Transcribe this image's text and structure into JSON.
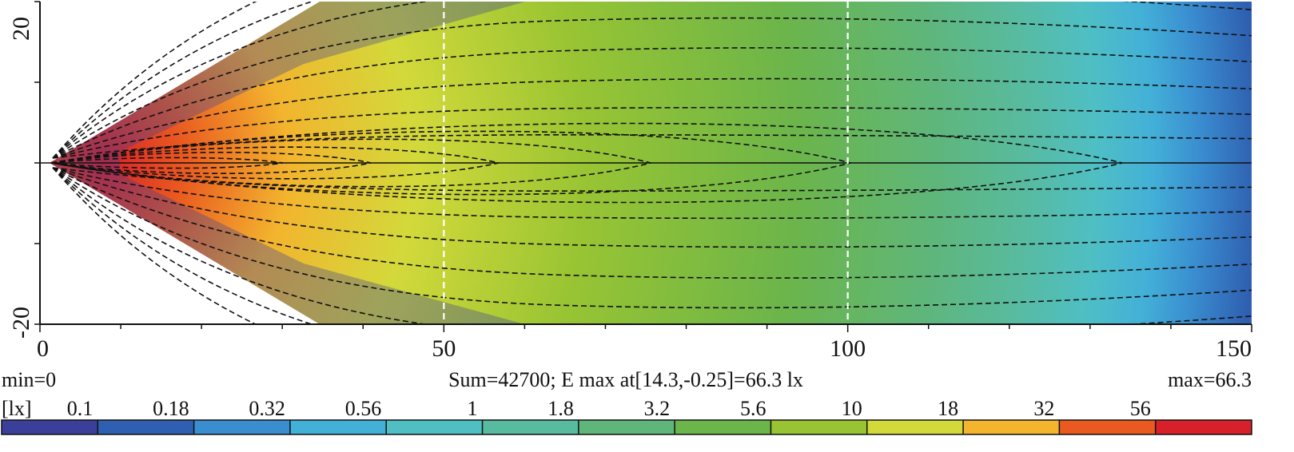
{
  "chart_data": {
    "type": "heatmap",
    "title": "",
    "x_ticks": [
      "0",
      "50",
      "100",
      "150"
    ],
    "y_ticks": [
      "20",
      "-20"
    ],
    "xlim": [
      0,
      150
    ],
    "ylim": [
      -20,
      20
    ],
    "grid_lines_x": [
      50,
      100
    ],
    "contour_levels": [
      0.1,
      0.18,
      0.32,
      0.56,
      1,
      1.8,
      3.2,
      5.6,
      10,
      18,
      32,
      56
    ],
    "peak": {
      "x": 14.3,
      "y": -0.25,
      "value": 66.3
    },
    "info": {
      "min_text": "min=0",
      "sum_text": "Sum=42700; E max at[14.3,-0.25]=66.3 lx",
      "max_text": "max=66.3"
    },
    "colorbar": {
      "unit_label": "[lx]",
      "tick_labels": [
        "0.1",
        "0.18",
        "0.32",
        "0.56",
        "1",
        "1.8",
        "3.2",
        "5.6",
        "10",
        "18",
        "32",
        "56"
      ],
      "colors": [
        "#3b3f9a",
        "#2f5fb0",
        "#3a8ed0",
        "#43b0d8",
        "#4fbfc4",
        "#58bba0",
        "#5fb67a",
        "#6cb54a",
        "#98c433",
        "#d3d93a",
        "#f3b42e",
        "#ea5a20",
        "#d8202a"
      ]
    }
  }
}
